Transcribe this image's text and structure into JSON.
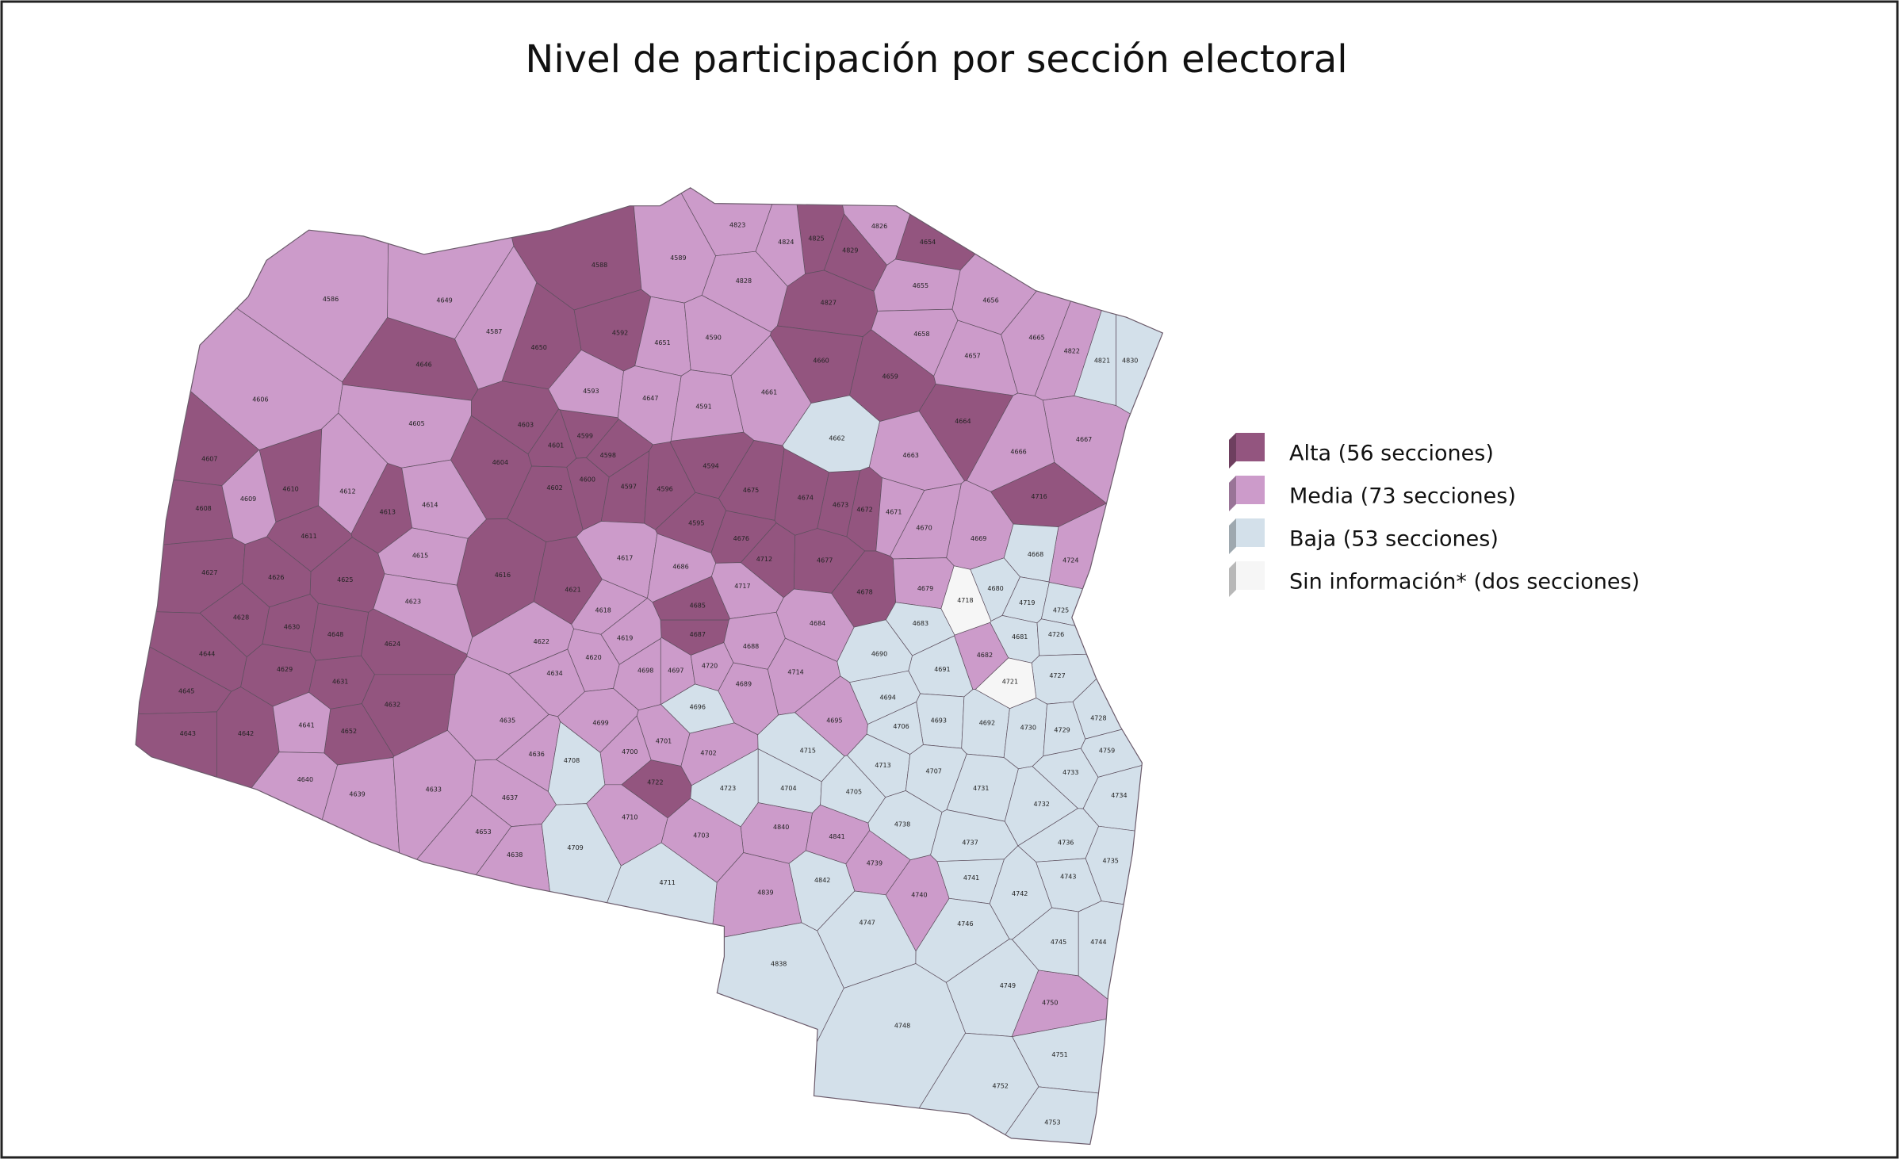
{
  "title": "Nivel de participación por sección electoral",
  "legend": [
    {
      "label": "Alta (56 secciones)",
      "color": "#93557f",
      "sections": [
        "4650",
        "4588",
        "4592",
        "4646",
        "4825",
        "4829",
        "4654",
        "4827",
        "4660",
        "4659",
        "4664",
        "4603",
        "4601",
        "4599",
        "4598",
        "4604",
        "4602",
        "4600",
        "4597",
        "4596",
        "4594",
        "4675",
        "4674",
        "4673",
        "4672",
        "4716",
        "4607",
        "4610",
        "4613",
        "4608",
        "4611",
        "4616",
        "4595",
        "4676",
        "4712",
        "4677",
        "4627",
        "4626",
        "4625",
        "4621",
        "4678",
        "4685",
        "4628",
        "4630",
        "4648",
        "4624",
        "4687",
        "4644",
        "4629",
        "4631",
        "4645",
        "4632",
        "4643",
        "4642",
        "4652",
        "4722"
      ]
    },
    {
      "label": "Media (73 secciones)",
      "color": "#cc9bca",
      "sections": [
        "4586",
        "4649",
        "4587",
        "4589",
        "4651",
        "4590",
        "4823",
        "4824",
        "4826",
        "4828",
        "4655",
        "4656",
        "4658",
        "4657",
        "4665",
        "4822",
        "4606",
        "4605",
        "4593",
        "4647",
        "4591",
        "4661",
        "4663",
        "4667",
        "4666",
        "4671",
        "4670",
        "4669",
        "4724",
        "4609",
        "4612",
        "4614",
        "4615",
        "4617",
        "4686",
        "4717",
        "4623",
        "4679",
        "4618",
        "4622",
        "4619",
        "4688",
        "4684",
        "4620",
        "4634",
        "4698",
        "4697",
        "4720",
        "4682",
        "4714",
        "4689",
        "4695",
        "4641",
        "4635",
        "4699",
        "4701",
        "4700",
        "4702",
        "4636",
        "4640",
        "4639",
        "4633",
        "4637",
        "4710",
        "4840",
        "4841",
        "4653",
        "4703",
        "4638",
        "4739",
        "4839",
        "4740",
        "4750"
      ]
    },
    {
      "label": "Baja (53 secciones)",
      "color": "#d3e0ea",
      "sections": [
        "4821",
        "4830",
        "4662",
        "4668",
        "4680",
        "4719",
        "4725",
        "4683",
        "4681",
        "4726",
        "4690",
        "4691",
        "4727",
        "4696",
        "4694",
        "4693",
        "4692",
        "4730",
        "4729",
        "4728",
        "4706",
        "4715",
        "4759",
        "4708",
        "4713",
        "4707",
        "4733",
        "4723",
        "4704",
        "4705",
        "4731",
        "4734",
        "4732",
        "4738",
        "4737",
        "4736",
        "4709",
        "4735",
        "4741",
        "4743",
        "4711",
        "4842",
        "4742",
        "4747",
        "4746",
        "4745",
        "4744",
        "4838",
        "4749",
        "4748",
        "4751",
        "4752",
        "4753"
      ]
    },
    {
      "label": "Sin información* (dos secciones)",
      "color": "#f6f6f6",
      "sections": [
        "4718",
        "4721"
      ]
    }
  ]
}
